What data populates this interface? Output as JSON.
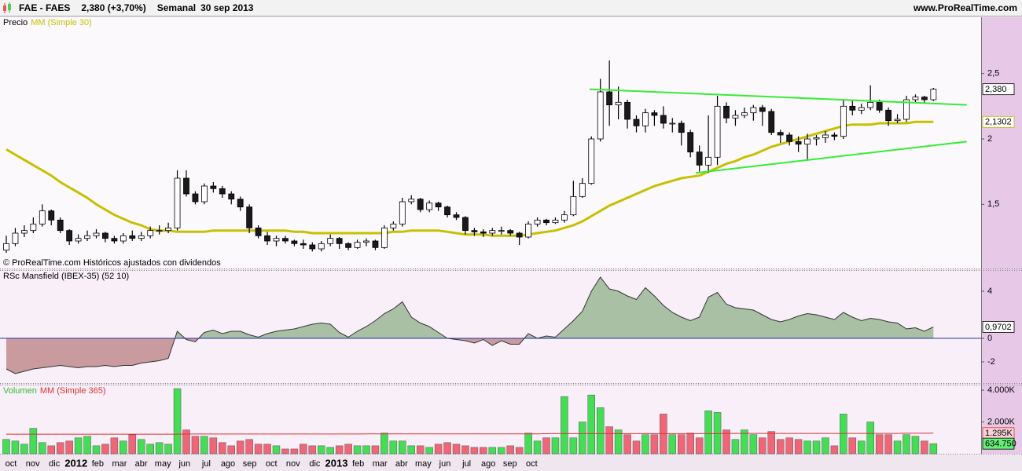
{
  "header": {
    "symbol": "FAE - FAES",
    "quote": "2,380 (+3,70%)",
    "period": "Semanal",
    "date": "30 sep 2013",
    "site": "www.ProRealTime.com"
  },
  "x_axis_labels": [
    "oct",
    "nov",
    "dic",
    "2012",
    "feb",
    "mar",
    "abr",
    "may",
    "jun",
    "jul",
    "ago",
    "sep",
    "oct",
    "nov",
    "dic",
    "2013",
    "feb",
    "mar",
    "abr",
    "may",
    "jun",
    "jul",
    "ago",
    "sep",
    "oct"
  ],
  "chart_data": [
    {
      "type": "candlestick",
      "title": "Precio",
      "note": "© ProRealTime.com Históricos ajustados con dividendos",
      "up_color": "#ffffff",
      "down_color": "#1a1a1a",
      "open": [
        1.15,
        1.2,
        1.28,
        1.3,
        1.35,
        1.45,
        1.38,
        1.3,
        1.22,
        1.24,
        1.26,
        1.28,
        1.24,
        1.22,
        1.26,
        1.24,
        1.26,
        1.3,
        1.3,
        1.32,
        1.7,
        1.58,
        1.52,
        1.64,
        1.62,
        1.58,
        1.54,
        1.48,
        1.32,
        1.26,
        1.22,
        1.24,
        1.22,
        1.2,
        1.19,
        1.16,
        1.2,
        1.24,
        1.2,
        1.17,
        1.21,
        1.22,
        1.17,
        1.32,
        1.35,
        1.52,
        1.54,
        1.46,
        1.51,
        1.48,
        1.42,
        1.4,
        1.3,
        1.29,
        1.28,
        1.3,
        1.3,
        1.28,
        1.25,
        1.35,
        1.38,
        1.36,
        1.38,
        1.42,
        1.56,
        1.66,
        2.0,
        2.36,
        2.26,
        2.28,
        2.15,
        2.1,
        2.2,
        2.18,
        2.12,
        2.12,
        2.05,
        1.9,
        1.8,
        1.86,
        2.25,
        2.16,
        2.18,
        2.2,
        2.24,
        2.21,
        2.05,
        2.03,
        1.98,
        1.96,
        2.0,
        2.01,
        2.03,
        2.02,
        2.25,
        2.22,
        2.24,
        2.28,
        2.22,
        2.14,
        2.15,
        2.3,
        2.32,
        2.3
      ],
      "high": [
        1.26,
        1.32,
        1.34,
        1.4,
        1.5,
        1.46,
        1.4,
        1.31,
        1.27,
        1.3,
        1.31,
        1.29,
        1.26,
        1.28,
        1.3,
        1.29,
        1.33,
        1.34,
        1.36,
        1.76,
        1.76,
        1.6,
        1.66,
        1.67,
        1.64,
        1.6,
        1.56,
        1.5,
        1.34,
        1.29,
        1.26,
        1.26,
        1.23,
        1.23,
        1.21,
        1.22,
        1.27,
        1.25,
        1.21,
        1.23,
        1.24,
        1.23,
        1.34,
        1.37,
        1.55,
        1.57,
        1.55,
        1.53,
        1.52,
        1.49,
        1.44,
        1.41,
        1.32,
        1.31,
        1.32,
        1.33,
        1.31,
        1.29,
        1.37,
        1.4,
        1.39,
        1.4,
        1.45,
        1.68,
        1.7,
        2.02,
        2.46,
        2.6,
        2.4,
        2.3,
        2.18,
        2.23,
        2.22,
        2.25,
        2.16,
        2.14,
        2.07,
        1.95,
        2.18,
        2.33,
        2.28,
        2.22,
        2.24,
        2.26,
        2.26,
        2.23,
        2.07,
        2.05,
        2.02,
        2.04,
        2.03,
        2.06,
        2.05,
        2.3,
        2.3,
        2.27,
        2.41,
        2.3,
        2.24,
        2.19,
        2.33,
        2.34,
        2.33,
        2.39
      ],
      "low": [
        1.13,
        1.18,
        1.25,
        1.28,
        1.33,
        1.34,
        1.28,
        1.19,
        1.2,
        1.22,
        1.24,
        1.21,
        1.2,
        1.2,
        1.22,
        1.22,
        1.24,
        1.27,
        1.28,
        1.3,
        1.56,
        1.5,
        1.5,
        1.59,
        1.55,
        1.5,
        1.45,
        1.28,
        1.24,
        1.19,
        1.18,
        1.2,
        1.18,
        1.16,
        1.14,
        1.14,
        1.18,
        1.16,
        1.15,
        1.16,
        1.18,
        1.15,
        1.16,
        1.3,
        1.33,
        1.5,
        1.44,
        1.44,
        1.45,
        1.4,
        1.38,
        1.27,
        1.26,
        1.25,
        1.26,
        1.27,
        1.26,
        1.19,
        1.24,
        1.33,
        1.34,
        1.35,
        1.36,
        1.41,
        1.55,
        1.65,
        1.98,
        2.1,
        2.15,
        2.08,
        2.05,
        2.05,
        2.1,
        2.08,
        2.05,
        1.95,
        1.86,
        1.75,
        1.74,
        1.8,
        2.12,
        2.1,
        2.16,
        2.14,
        2.1,
        2.03,
        1.97,
        1.95,
        1.9,
        1.84,
        1.95,
        1.97,
        1.99,
        2.0,
        2.18,
        2.19,
        2.22,
        2.2,
        2.1,
        2.12,
        2.13,
        2.28,
        2.27,
        2.29
      ],
      "close": [
        1.2,
        1.28,
        1.3,
        1.35,
        1.45,
        1.38,
        1.3,
        1.22,
        1.24,
        1.26,
        1.28,
        1.24,
        1.22,
        1.26,
        1.24,
        1.26,
        1.3,
        1.3,
        1.32,
        1.7,
        1.58,
        1.52,
        1.64,
        1.62,
        1.58,
        1.54,
        1.48,
        1.32,
        1.26,
        1.22,
        1.24,
        1.22,
        1.2,
        1.19,
        1.16,
        1.2,
        1.24,
        1.2,
        1.17,
        1.21,
        1.22,
        1.17,
        1.32,
        1.35,
        1.52,
        1.54,
        1.46,
        1.51,
        1.48,
        1.42,
        1.4,
        1.3,
        1.29,
        1.28,
        1.3,
        1.3,
        1.28,
        1.25,
        1.35,
        1.38,
        1.36,
        1.38,
        1.42,
        1.56,
        1.66,
        2.0,
        2.36,
        2.26,
        2.28,
        2.15,
        2.1,
        2.2,
        2.18,
        2.12,
        2.12,
        2.05,
        1.9,
        1.8,
        1.86,
        2.25,
        2.16,
        2.18,
        2.2,
        2.24,
        2.21,
        2.05,
        2.03,
        1.98,
        1.96,
        2.0,
        2.01,
        2.03,
        2.02,
        2.25,
        2.22,
        2.24,
        2.28,
        2.22,
        2.14,
        2.15,
        2.3,
        2.32,
        2.3,
        2.38
      ],
      "series": [
        {
          "name": "MM (Simple 30)",
          "color": "#c8c000",
          "values": [
            1.92,
            1.88,
            1.84,
            1.8,
            1.76,
            1.72,
            1.67,
            1.63,
            1.59,
            1.55,
            1.5,
            1.46,
            1.42,
            1.39,
            1.36,
            1.34,
            1.31,
            1.3,
            1.3,
            1.29,
            1.29,
            1.29,
            1.29,
            1.3,
            1.3,
            1.3,
            1.3,
            1.3,
            1.3,
            1.3,
            1.3,
            1.3,
            1.29,
            1.29,
            1.28,
            1.28,
            1.28,
            1.28,
            1.28,
            1.28,
            1.28,
            1.28,
            1.28,
            1.29,
            1.29,
            1.3,
            1.3,
            1.3,
            1.3,
            1.29,
            1.28,
            1.27,
            1.27,
            1.27,
            1.26,
            1.26,
            1.26,
            1.26,
            1.27,
            1.28,
            1.29,
            1.3,
            1.32,
            1.34,
            1.37,
            1.41,
            1.45,
            1.49,
            1.52,
            1.55,
            1.58,
            1.61,
            1.64,
            1.66,
            1.68,
            1.7,
            1.71,
            1.72,
            1.75,
            1.78,
            1.81,
            1.83,
            1.86,
            1.88,
            1.91,
            1.94,
            1.96,
            1.98,
            2.0,
            2.02,
            2.04,
            2.06,
            2.08,
            2.1,
            2.11,
            2.11,
            2.11,
            2.12,
            2.12,
            2.12,
            2.12,
            2.13,
            2.13,
            2.1302
          ]
        }
      ],
      "trendlines": [
        {
          "x": [
            64.8,
            106.7
          ],
          "y": [
            2.38,
            2.26
          ]
        },
        {
          "x": [
            76.6,
            106.7
          ],
          "y": [
            1.74,
            1.98
          ]
        }
      ],
      "trendline_color": "#33ee33",
      "ylim": [
        1.01,
        2.93
      ],
      "yticks": [
        {
          "value": 1.5,
          "label": "1,5"
        },
        2,
        {
          "value": 2.5,
          "label": "2,5"
        }
      ],
      "markers": [
        {
          "value": 2.38,
          "label": "2,380",
          "color": "#000000"
        },
        {
          "value": 2.1302,
          "label": "2,1302",
          "color": "#c8b400"
        }
      ]
    },
    {
      "type": "area",
      "title": "RSc Mansfield (IBEX-35) (52 10)",
      "values": [
        -2.6,
        -3.0,
        -2.8,
        -2.6,
        -2.5,
        -2.4,
        -2.3,
        -2.4,
        -2.5,
        -2.4,
        -2.4,
        -2.3,
        -2.4,
        -2.3,
        -2.3,
        -2.1,
        -2.0,
        -1.9,
        -1.7,
        0.6,
        -0.1,
        -0.3,
        0.5,
        0.7,
        0.4,
        0.6,
        0.6,
        0.3,
        0.1,
        0.4,
        0.6,
        0.7,
        0.8,
        1.0,
        1.2,
        1.3,
        1.2,
        0.5,
        0.1,
        0.6,
        1.0,
        1.5,
        2.1,
        2.5,
        3.1,
        1.8,
        1.3,
        1.0,
        0.5,
        0.0,
        -0.1,
        -0.2,
        -0.4,
        -0.1,
        -0.6,
        -0.2,
        -0.5,
        -0.5,
        0.4,
        0.0,
        0.2,
        0.1,
        0.8,
        1.5,
        2.3,
        4.0,
        5.2,
        4.2,
        4.0,
        3.6,
        3.3,
        4.3,
        3.6,
        2.8,
        2.2,
        1.8,
        1.5,
        1.8,
        3.5,
        3.9,
        2.9,
        2.6,
        2.5,
        2.4,
        2.0,
        1.6,
        1.4,
        1.6,
        1.9,
        2.1,
        2.0,
        1.8,
        1.6,
        2.2,
        1.8,
        1.5,
        1.7,
        1.6,
        1.4,
        1.3,
        0.8,
        0.9,
        0.6,
        0.9702
      ],
      "positive_color": "#a9c0a4",
      "negative_color": "#c99a9e",
      "zero_line_color": "#2233aa",
      "ylim": [
        -3.8,
        5.73
      ],
      "yticks": [
        -2,
        0,
        4
      ],
      "markers": [
        {
          "value": 0.9702,
          "label": "0,9702",
          "color": "#000000"
        }
      ]
    },
    {
      "type": "bar",
      "title": "Volumen",
      "title_color": "#33bb33",
      "up_color": "#44dd55",
      "down_color": "#ee6677",
      "values": [
        900,
        800,
        600,
        1600,
        700,
        500,
        700,
        800,
        1000,
        1100,
        500,
        600,
        1000,
        800,
        1200,
        900,
        600,
        700,
        600,
        4100,
        1500,
        1100,
        1100,
        1000,
        700,
        500,
        800,
        900,
        600,
        600,
        500,
        300,
        300,
        600,
        500,
        500,
        400,
        500,
        600,
        500,
        500,
        500,
        1300,
        800,
        800,
        500,
        500,
        400,
        600,
        700,
        600,
        500,
        400,
        400,
        400,
        400,
        500,
        400,
        1300,
        800,
        1000,
        1000,
        3600,
        1000,
        2000,
        3700,
        2900,
        1700,
        1500,
        1200,
        800,
        1200,
        1200,
        2500,
        1200,
        1200,
        1300,
        1000,
        2700,
        2600,
        1500,
        900,
        1500,
        1200,
        1000,
        1400,
        900,
        1000,
        900,
        800,
        800,
        1000,
        500,
        2500,
        1000,
        800,
        2000,
        1200,
        1200,
        800,
        1200,
        1100,
        800,
        634.75
      ],
      "series": [
        {
          "name": "MM (Simple 365)",
          "color": "#dd3333",
          "values": [
            1230,
            1230,
            1230,
            1230,
            1230,
            1230,
            1230,
            1230,
            1230,
            1230,
            1230,
            1230,
            1230,
            1230,
            1230,
            1230,
            1230,
            1230,
            1230,
            1230,
            1240,
            1240,
            1240,
            1240,
            1240,
            1240,
            1240,
            1240,
            1240,
            1240,
            1240,
            1240,
            1240,
            1240,
            1240,
            1240,
            1240,
            1240,
            1240,
            1240,
            1250,
            1250,
            1250,
            1250,
            1250,
            1250,
            1250,
            1250,
            1250,
            1250,
            1250,
            1250,
            1250,
            1250,
            1250,
            1250,
            1250,
            1250,
            1250,
            1250,
            1265,
            1265,
            1265,
            1265,
            1265,
            1265,
            1265,
            1265,
            1265,
            1265,
            1265,
            1265,
            1265,
            1265,
            1265,
            1265,
            1265,
            1265,
            1265,
            1265,
            1280,
            1280,
            1280,
            1280,
            1280,
            1280,
            1280,
            1280,
            1280,
            1280,
            1280,
            1280,
            1280,
            1280,
            1280,
            1280,
            1280,
            1280,
            1280,
            1280,
            1290,
            1290,
            1290,
            1295
          ]
        }
      ],
      "ylim": [
        0,
        4300
      ],
      "yticks": [
        {
          "value": 2000,
          "label": "2.000K"
        },
        {
          "value": 4000,
          "label": "4.000K"
        }
      ],
      "markers": [
        {
          "value": 1295,
          "label": "1.295K",
          "color": "#dd3333",
          "background": "#f8d0d8"
        },
        {
          "value": 634.75,
          "label": "634.750",
          "color": "#000000",
          "background": "#66ee77"
        }
      ]
    }
  ]
}
